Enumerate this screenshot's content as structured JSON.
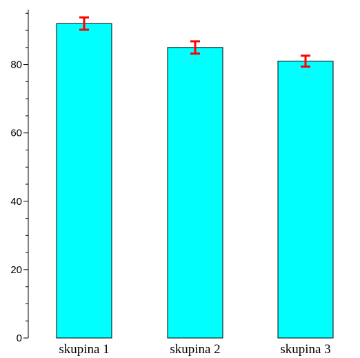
{
  "chart_data": {
    "type": "bar",
    "categories": [
      "skupina 1",
      "skupina 2",
      "skupina 3"
    ],
    "values": [
      92,
      85,
      81
    ],
    "error_low": [
      90.2,
      83.2,
      79.4
    ],
    "error_high": [
      93.8,
      86.8,
      82.6
    ],
    "title": "",
    "xlabel": "",
    "ylabel": "",
    "ylim": [
      0,
      95
    ],
    "y_ticks": [
      "0",
      "20",
      "40",
      "60",
      "80"
    ],
    "grid": false,
    "legend": "none",
    "colors": {
      "bar_fill": "#00ffff",
      "bar_stroke": "#000000",
      "error_bar": "#ff0000",
      "axis": "#000000"
    }
  }
}
